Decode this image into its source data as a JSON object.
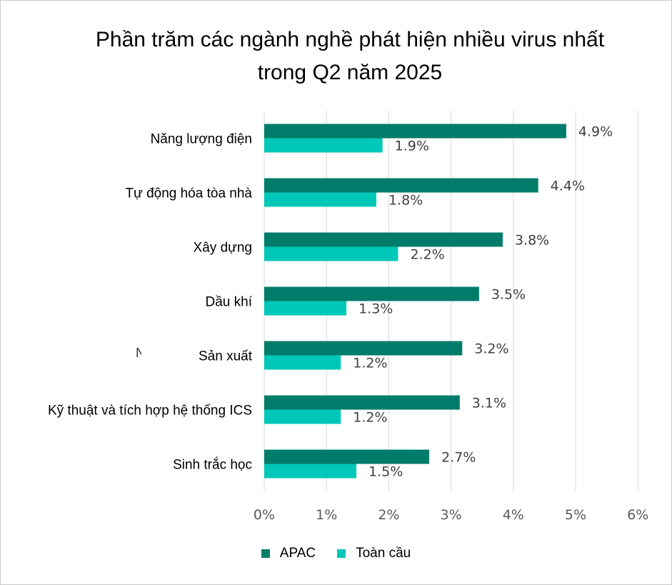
{
  "title_lines": [
    "Phần trăm các ngành nghề phát hiện nhiều virus nhất",
    "trong Q2 năm 2025"
  ],
  "stray_text": "N",
  "chart_data": {
    "type": "bar",
    "orientation": "horizontal",
    "title": "Phần trăm các ngành nghề phát hiện nhiều virus nhất trong Q2 năm 2025",
    "categories": [
      "Năng lượng điện",
      "Tự động hóa tòa nhà",
      "Xây dựng",
      "Dầu khí",
      "Sản xuất",
      "Kỹ thuật và tích hợp hệ thống ICS",
      "Sinh trắc học"
    ],
    "series": [
      {
        "name": "APAC",
        "color": "#007d6a",
        "values": [
          4.85,
          4.4,
          3.83,
          3.45,
          3.18,
          3.14,
          2.65
        ],
        "labels": [
          "4.9%",
          "4.4%",
          "3.8%",
          "3.5%",
          "3.2%",
          "3.1%",
          "2.7%"
        ]
      },
      {
        "name": "Toàn cầu",
        "color": "#00c8b8",
        "values": [
          1.9,
          1.8,
          2.15,
          1.32,
          1.23,
          1.23,
          1.48
        ],
        "labels": [
          "1.9%",
          "1.8%",
          "2.2%",
          "1.3%",
          "1.2%",
          "1.2%",
          "1.5%"
        ]
      }
    ],
    "xlim": [
      0,
      6
    ],
    "ticks": [
      0,
      1,
      2,
      3,
      4,
      5,
      6
    ],
    "tick_labels": [
      "0%",
      "1%",
      "2%",
      "3%",
      "4%",
      "5%",
      "6%"
    ],
    "grid": true,
    "legend_position": "bottom"
  },
  "colors": {
    "apac": "#007d6a",
    "global": "#00c8b8",
    "grid": "#d9d9d9"
  }
}
